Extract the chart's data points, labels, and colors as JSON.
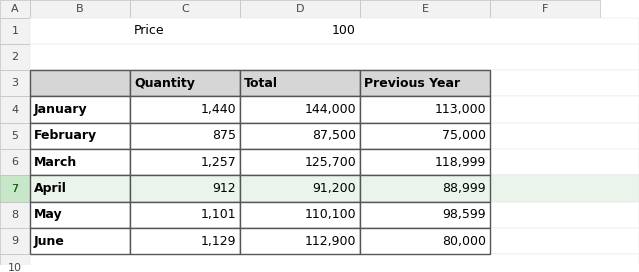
{
  "col_headers": [
    "A",
    "B",
    "C",
    "D",
    "E",
    "F"
  ],
  "row_headers": [
    "1",
    "2",
    "3",
    "4",
    "5",
    "6",
    "7",
    "8",
    "9",
    "10"
  ],
  "price_label": "Price",
  "price_value": "100",
  "table_headers": [
    "",
    "Quantity",
    "Total",
    "Previous Year"
  ],
  "months": [
    "January",
    "February",
    "March",
    "April",
    "May",
    "June"
  ],
  "quantity": [
    "1,440",
    "875",
    "1,257",
    "912",
    "1,101",
    "1,129"
  ],
  "total": [
    "144,000",
    "87,500",
    "125,700",
    "91,200",
    "110,100",
    "112,900"
  ],
  "previous_year": [
    "113,000",
    "75,000",
    "118,999",
    "88,999",
    "98,599",
    "80,000"
  ],
  "bg_color": "#ffffff",
  "header_bg": "#d9d9d9",
  "cell_border": "#7f7f7f",
  "grid_color": "#d0d0d0",
  "col_header_bg": "#f2f2f2",
  "row_header_bg": "#f2f2f2",
  "header_text_color": "#000000",
  "data_text_color": "#000000",
  "table_header_bg": "#d6d6d6",
  "selected_row_color": "#c6efce",
  "row7_color": "#e2efda"
}
